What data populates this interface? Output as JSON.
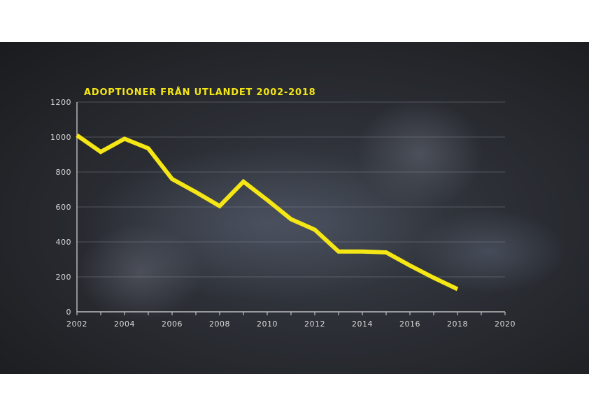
{
  "chart_data": {
    "type": "line",
    "title": "ADOPTIONER FRÅN UTLANDET 2002-2018",
    "xlabel": "",
    "ylabel": "",
    "xlim": [
      2002,
      2020
    ],
    "ylim": [
      0,
      1200
    ],
    "x_ticks": [
      2002,
      2004,
      2006,
      2008,
      2010,
      2012,
      2014,
      2016,
      2018,
      2020
    ],
    "y_ticks": [
      0,
      200,
      400,
      600,
      800,
      1000,
      1200
    ],
    "grid": true,
    "line_color": "#f5e615",
    "series": [
      {
        "x": [
          2002,
          2003,
          2004,
          2005,
          2006,
          2007,
          2008,
          2009,
          2010,
          2011,
          2012,
          2013,
          2014,
          2015,
          2016,
          2017,
          2018
        ],
        "values": [
          1010,
          915,
          990,
          935,
          760,
          685,
          605,
          745,
          640,
          530,
          470,
          345,
          345,
          340,
          265,
          195,
          130
        ]
      }
    ]
  }
}
